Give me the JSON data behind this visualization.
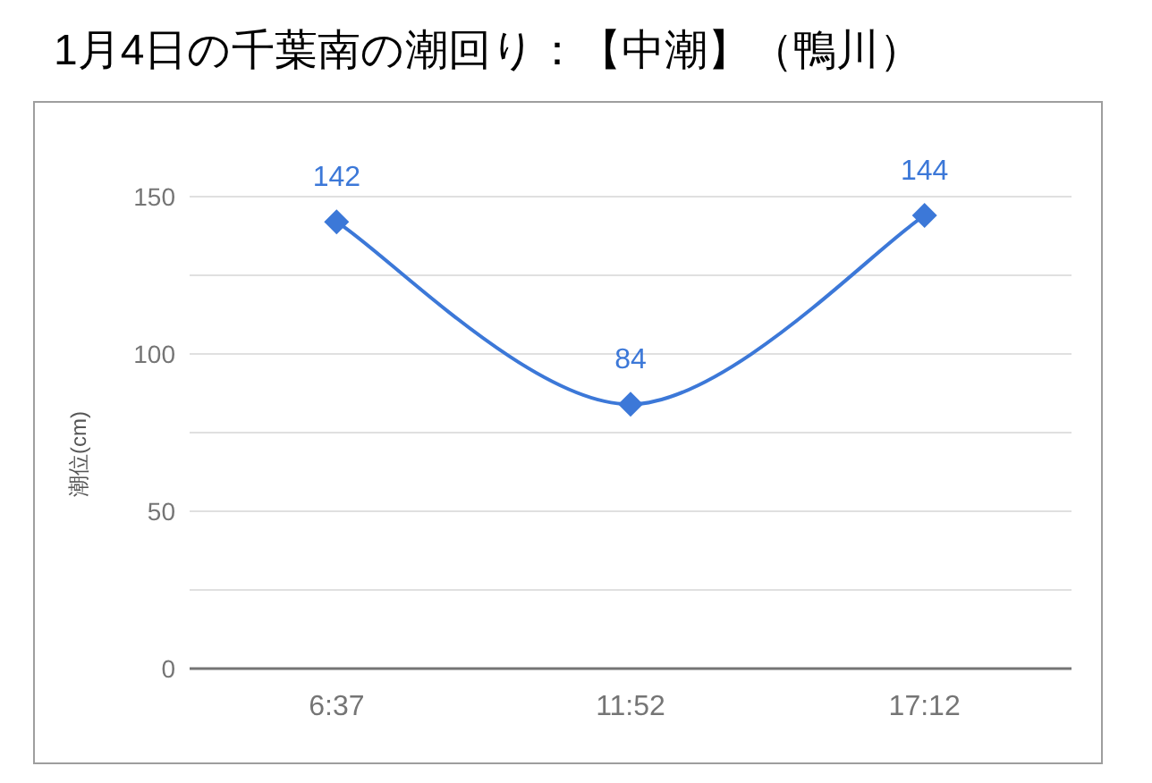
{
  "chart_data": {
    "type": "line",
    "title": "1月4日の千葉南の潮回り：【中潮】（鴨川）",
    "ylabel": "潮位(cm)",
    "categories": [
      "6:37",
      "11:52",
      "17:12"
    ],
    "series": [
      {
        "color": "#3c78d8",
        "values": [
          142,
          84,
          144
        ]
      }
    ],
    "ylim": [
      0,
      150
    ],
    "yticks": [
      0,
      {
        "value": 25,
        "label": null
      },
      50,
      {
        "value": 75,
        "label": null
      },
      100,
      {
        "value": 125,
        "label": null
      },
      150
    ],
    "grid": "y",
    "marker": "diamond",
    "line_style": "solid",
    "data_labels": true
  }
}
